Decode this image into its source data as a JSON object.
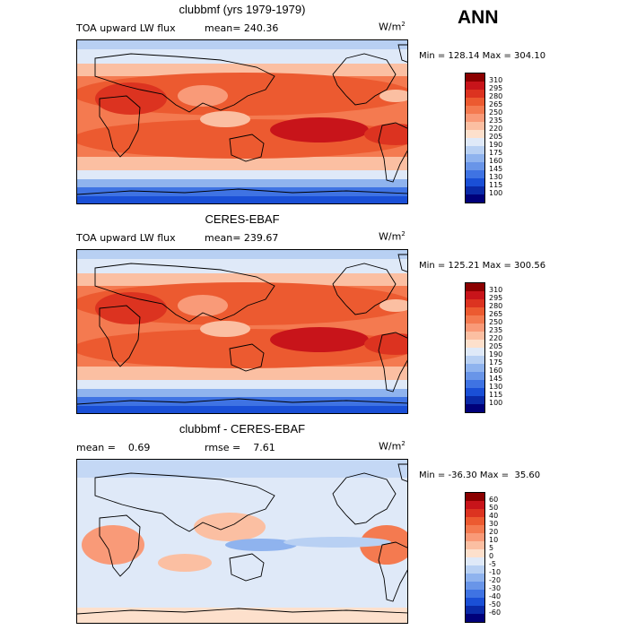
{
  "season": "ANN",
  "units_base": "W/m",
  "units_exp": "2",
  "panels": [
    {
      "title": "clubbmf (yrs 1979-1979)",
      "left_label": "TOA upward LW flux",
      "mid_label": "mean= 240.36",
      "minmax": "Min = 128.14 Max = 304.10",
      "levels": [
        "310",
        "295",
        "280",
        "265",
        "250",
        "235",
        "220",
        "205",
        "190",
        "175",
        "160",
        "145",
        "130",
        "115",
        "100"
      ],
      "colors": [
        "#8b0000",
        "#c8141a",
        "#dc3320",
        "#ec5a30",
        "#f47a50",
        "#f99a78",
        "#fbbfa2",
        "#fde0cc",
        "#dfe9f8",
        "#b8d0f3",
        "#8fb3ee",
        "#6995e8",
        "#3f73e3",
        "#1a4fd6",
        "#0a2aa8",
        "#00007a"
      ],
      "palette": "temp"
    },
    {
      "title": "CERES-EBAF",
      "left_label": "TOA upward LW flux",
      "mid_label": "mean= 239.67",
      "minmax": "Min = 125.21 Max = 300.56",
      "levels": [
        "310",
        "295",
        "280",
        "265",
        "250",
        "235",
        "220",
        "205",
        "190",
        "175",
        "160",
        "145",
        "130",
        "115",
        "100"
      ],
      "colors": [
        "#8b0000",
        "#c8141a",
        "#dc3320",
        "#ec5a30",
        "#f47a50",
        "#f99a78",
        "#fbbfa2",
        "#fde0cc",
        "#dfe9f8",
        "#b8d0f3",
        "#8fb3ee",
        "#6995e8",
        "#3f73e3",
        "#1a4fd6",
        "#0a2aa8",
        "#00007a"
      ],
      "palette": "temp"
    },
    {
      "title": "clubbmf - CERES-EBAF",
      "left_label": "mean =    0.69",
      "mid_label": "rmse =    7.61",
      "minmax": "Min = -36.30 Max =  35.60",
      "levels": [
        "60",
        "50",
        "40",
        "30",
        "20",
        "10",
        "5",
        "0",
        "-5",
        "-10",
        "-20",
        "-30",
        "-40",
        "-50",
        "-60"
      ],
      "colors": [
        "#8b0000",
        "#c8141a",
        "#dc3320",
        "#ec5a30",
        "#f47a50",
        "#f99a78",
        "#fbbfa2",
        "#fde0cc",
        "#dfe9f8",
        "#b8d0f3",
        "#8fb3ee",
        "#6995e8",
        "#3f73e3",
        "#1a4fd6",
        "#0a2aa8",
        "#00007a"
      ],
      "palette": "diff"
    }
  ]
}
